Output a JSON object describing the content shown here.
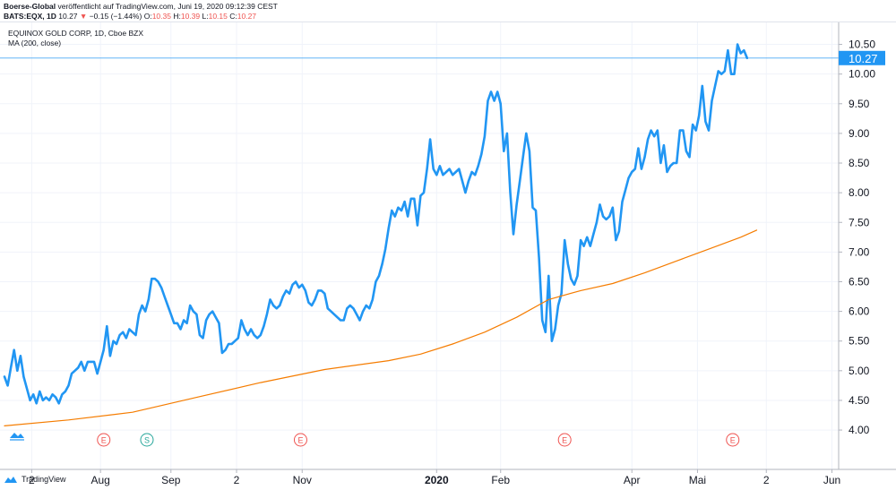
{
  "header": {
    "publisher": "Boerse-Global",
    "line1_rest": "veröffentlicht auf TradingView.com, Juni 19, 2020 09:12:39 CEST",
    "symbol": "BATS:EQX, 1D",
    "last": "10.27",
    "change": "−0.15 (−1.44%)",
    "o_label": "O:",
    "o_value": "10.35",
    "h_label": "H:",
    "h_value": "10.39",
    "l_label": "L:",
    "l_value": "10.15",
    "c_label": "C:",
    "c_value": "10.27"
  },
  "legend": {
    "title": "EQUINOX GOLD CORP, 1D, Cboe BZX",
    "indicator": "MA (200, close)"
  },
  "footer": {
    "brand": "TradingView"
  },
  "chart_data": {
    "type": "line",
    "y_ticks": [
      "4.00",
      "4.50",
      "5.00",
      "5.50",
      "6.00",
      "6.50",
      "7.00",
      "7.50",
      "8.00",
      "8.50",
      "9.00",
      "9.50",
      "10.00",
      "10.50"
    ],
    "x_labels": [
      {
        "label": "2",
        "t": 17
      },
      {
        "label": "Aug",
        "t": 60
      },
      {
        "label": "Sep",
        "t": 104
      },
      {
        "label": "2",
        "t": 145
      },
      {
        "label": "Nov",
        "t": 186
      },
      {
        "label": "2020",
        "t": 270
      },
      {
        "label": "Feb",
        "t": 310
      },
      {
        "label": "Apr",
        "t": 392
      },
      {
        "label": "Mai",
        "t": 433
      },
      {
        "label": "2",
        "t": 476
      },
      {
        "label": "Jun",
        "t": 517
      }
    ],
    "earnings_markers": [
      {
        "label": "E",
        "t": 62
      },
      {
        "label": "S",
        "t": 89
      },
      {
        "label": "E",
        "t": 185
      },
      {
        "label": "E",
        "t": 350
      },
      {
        "label": "E",
        "t": 455
      }
    ],
    "last_price": 10.27,
    "last_price_label": "10.27",
    "colors": {
      "price": "#2196f3",
      "ma": "#f57c00",
      "grid": "#f0f3fa",
      "last_tag": "#2196f3"
    },
    "series": [
      {
        "name": "EQUINOX GOLD CORP",
        "points": [
          [
            0,
            4.9
          ],
          [
            2,
            4.75
          ],
          [
            4,
            5.05
          ],
          [
            6,
            5.35
          ],
          [
            8,
            5.0
          ],
          [
            10,
            5.25
          ],
          [
            12,
            4.9
          ],
          [
            14,
            4.7
          ],
          [
            16,
            4.5
          ],
          [
            18,
            4.6
          ],
          [
            20,
            4.45
          ],
          [
            22,
            4.65
          ],
          [
            24,
            4.5
          ],
          [
            26,
            4.55
          ],
          [
            28,
            4.5
          ],
          [
            30,
            4.6
          ],
          [
            32,
            4.55
          ],
          [
            34,
            4.45
          ],
          [
            36,
            4.6
          ],
          [
            38,
            4.65
          ],
          [
            40,
            4.75
          ],
          [
            42,
            4.95
          ],
          [
            44,
            5.0
          ],
          [
            46,
            5.05
          ],
          [
            48,
            5.15
          ],
          [
            50,
            5.0
          ],
          [
            52,
            5.15
          ],
          [
            54,
            5.15
          ],
          [
            56,
            5.15
          ],
          [
            58,
            4.95
          ],
          [
            60,
            5.15
          ],
          [
            62,
            5.35
          ],
          [
            64,
            5.75
          ],
          [
            66,
            5.25
          ],
          [
            68,
            5.5
          ],
          [
            70,
            5.45
          ],
          [
            72,
            5.6
          ],
          [
            74,
            5.65
          ],
          [
            76,
            5.55
          ],
          [
            78,
            5.7
          ],
          [
            80,
            5.65
          ],
          [
            82,
            5.6
          ],
          [
            84,
            5.95
          ],
          [
            86,
            6.1
          ],
          [
            88,
            6.0
          ],
          [
            90,
            6.2
          ],
          [
            92,
            6.55
          ],
          [
            94,
            6.55
          ],
          [
            96,
            6.5
          ],
          [
            98,
            6.4
          ],
          [
            100,
            6.25
          ],
          [
            102,
            6.1
          ],
          [
            104,
            5.95
          ],
          [
            106,
            5.8
          ],
          [
            108,
            5.8
          ],
          [
            110,
            5.7
          ],
          [
            112,
            5.85
          ],
          [
            114,
            5.8
          ],
          [
            116,
            6.1
          ],
          [
            118,
            6.0
          ],
          [
            120,
            5.95
          ],
          [
            122,
            5.6
          ],
          [
            124,
            5.55
          ],
          [
            126,
            5.85
          ],
          [
            128,
            5.95
          ],
          [
            130,
            6.0
          ],
          [
            132,
            5.9
          ],
          [
            134,
            5.8
          ],
          [
            136,
            5.3
          ],
          [
            138,
            5.35
          ],
          [
            140,
            5.45
          ],
          [
            142,
            5.45
          ],
          [
            144,
            5.5
          ],
          [
            146,
            5.55
          ],
          [
            148,
            5.85
          ],
          [
            150,
            5.7
          ],
          [
            152,
            5.6
          ],
          [
            154,
            5.7
          ],
          [
            156,
            5.6
          ],
          [
            158,
            5.55
          ],
          [
            160,
            5.6
          ],
          [
            162,
            5.75
          ],
          [
            164,
            5.95
          ],
          [
            166,
            6.2
          ],
          [
            168,
            6.1
          ],
          [
            170,
            6.05
          ],
          [
            172,
            6.1
          ],
          [
            174,
            6.25
          ],
          [
            176,
            6.35
          ],
          [
            178,
            6.3
          ],
          [
            180,
            6.45
          ],
          [
            182,
            6.5
          ],
          [
            184,
            6.4
          ],
          [
            186,
            6.45
          ],
          [
            188,
            6.35
          ],
          [
            190,
            6.15
          ],
          [
            192,
            6.1
          ],
          [
            194,
            6.2
          ],
          [
            196,
            6.35
          ],
          [
            198,
            6.35
          ],
          [
            200,
            6.3
          ],
          [
            202,
            6.05
          ],
          [
            204,
            6.0
          ],
          [
            206,
            5.95
          ],
          [
            208,
            5.9
          ],
          [
            210,
            5.85
          ],
          [
            212,
            5.85
          ],
          [
            214,
            6.05
          ],
          [
            216,
            6.1
          ],
          [
            218,
            6.05
          ],
          [
            220,
            5.95
          ],
          [
            222,
            5.85
          ],
          [
            224,
            6.0
          ],
          [
            226,
            6.1
          ],
          [
            228,
            6.05
          ],
          [
            230,
            6.2
          ],
          [
            232,
            6.5
          ],
          [
            234,
            6.6
          ],
          [
            236,
            6.8
          ],
          [
            238,
            7.05
          ],
          [
            240,
            7.4
          ],
          [
            242,
            7.7
          ],
          [
            244,
            7.6
          ],
          [
            246,
            7.75
          ],
          [
            248,
            7.7
          ],
          [
            250,
            7.85
          ],
          [
            252,
            7.6
          ],
          [
            254,
            7.9
          ],
          [
            256,
            7.9
          ],
          [
            258,
            7.45
          ],
          [
            260,
            7.95
          ],
          [
            262,
            8.0
          ],
          [
            264,
            8.4
          ],
          [
            266,
            8.9
          ],
          [
            268,
            8.4
          ],
          [
            270,
            8.3
          ],
          [
            272,
            8.45
          ],
          [
            274,
            8.3
          ],
          [
            276,
            8.35
          ],
          [
            278,
            8.4
          ],
          [
            280,
            8.3
          ],
          [
            282,
            8.35
          ],
          [
            284,
            8.4
          ],
          [
            286,
            8.2
          ],
          [
            288,
            8.0
          ],
          [
            290,
            8.2
          ],
          [
            292,
            8.35
          ],
          [
            294,
            8.3
          ],
          [
            296,
            8.45
          ],
          [
            298,
            8.65
          ],
          [
            300,
            8.95
          ],
          [
            302,
            9.55
          ],
          [
            304,
            9.7
          ],
          [
            306,
            9.55
          ],
          [
            308,
            9.7
          ],
          [
            310,
            9.5
          ],
          [
            312,
            8.7
          ],
          [
            314,
            9.0
          ],
          [
            316,
            8.0
          ],
          [
            318,
            7.3
          ],
          [
            320,
            7.8
          ],
          [
            322,
            8.2
          ],
          [
            324,
            8.6
          ],
          [
            326,
            9.0
          ],
          [
            328,
            8.7
          ],
          [
            330,
            7.75
          ],
          [
            332,
            7.7
          ],
          [
            334,
            6.9
          ],
          [
            336,
            5.85
          ],
          [
            338,
            5.65
          ],
          [
            340,
            6.6
          ],
          [
            342,
            5.5
          ],
          [
            344,
            5.7
          ],
          [
            346,
            6.1
          ],
          [
            348,
            6.3
          ],
          [
            350,
            7.2
          ],
          [
            352,
            6.8
          ],
          [
            354,
            6.55
          ],
          [
            356,
            6.45
          ],
          [
            358,
            6.6
          ],
          [
            360,
            7.2
          ],
          [
            362,
            7.1
          ],
          [
            364,
            7.25
          ],
          [
            366,
            7.1
          ],
          [
            368,
            7.3
          ],
          [
            370,
            7.5
          ],
          [
            372,
            7.8
          ],
          [
            374,
            7.6
          ],
          [
            376,
            7.55
          ],
          [
            378,
            7.6
          ],
          [
            380,
            7.75
          ],
          [
            382,
            7.2
          ],
          [
            384,
            7.35
          ],
          [
            386,
            7.85
          ],
          [
            388,
            8.05
          ],
          [
            390,
            8.25
          ],
          [
            392,
            8.35
          ],
          [
            394,
            8.4
          ],
          [
            396,
            8.75
          ],
          [
            398,
            8.4
          ],
          [
            400,
            8.6
          ],
          [
            402,
            8.9
          ],
          [
            404,
            9.05
          ],
          [
            406,
            8.95
          ],
          [
            408,
            9.05
          ],
          [
            410,
            8.5
          ],
          [
            412,
            8.8
          ],
          [
            414,
            8.35
          ],
          [
            416,
            8.45
          ],
          [
            418,
            8.5
          ],
          [
            420,
            8.5
          ],
          [
            422,
            9.05
          ],
          [
            424,
            9.05
          ],
          [
            426,
            8.7
          ],
          [
            428,
            8.6
          ],
          [
            430,
            9.15
          ],
          [
            432,
            9.05
          ],
          [
            434,
            9.3
          ],
          [
            436,
            9.8
          ],
          [
            438,
            9.2
          ],
          [
            440,
            9.05
          ],
          [
            442,
            9.55
          ],
          [
            444,
            9.8
          ],
          [
            446,
            10.05
          ],
          [
            448,
            10.0
          ],
          [
            450,
            10.05
          ],
          [
            452,
            10.4
          ],
          [
            454,
            10.0
          ],
          [
            456,
            10.0
          ],
          [
            458,
            10.5
          ],
          [
            460,
            10.35
          ],
          [
            462,
            10.4
          ],
          [
            464,
            10.27
          ]
        ]
      },
      {
        "name": "MA (200, close)",
        "points": [
          [
            0,
            4.07
          ],
          [
            40,
            4.17
          ],
          [
            80,
            4.3
          ],
          [
            120,
            4.55
          ],
          [
            160,
            4.8
          ],
          [
            200,
            5.02
          ],
          [
            240,
            5.17
          ],
          [
            260,
            5.28
          ],
          [
            280,
            5.45
          ],
          [
            300,
            5.65
          ],
          [
            320,
            5.9
          ],
          [
            340,
            6.2
          ],
          [
            360,
            6.35
          ],
          [
            380,
            6.47
          ],
          [
            400,
            6.65
          ],
          [
            420,
            6.85
          ],
          [
            440,
            7.05
          ],
          [
            460,
            7.25
          ],
          [
            470,
            7.37
          ]
        ]
      }
    ]
  }
}
